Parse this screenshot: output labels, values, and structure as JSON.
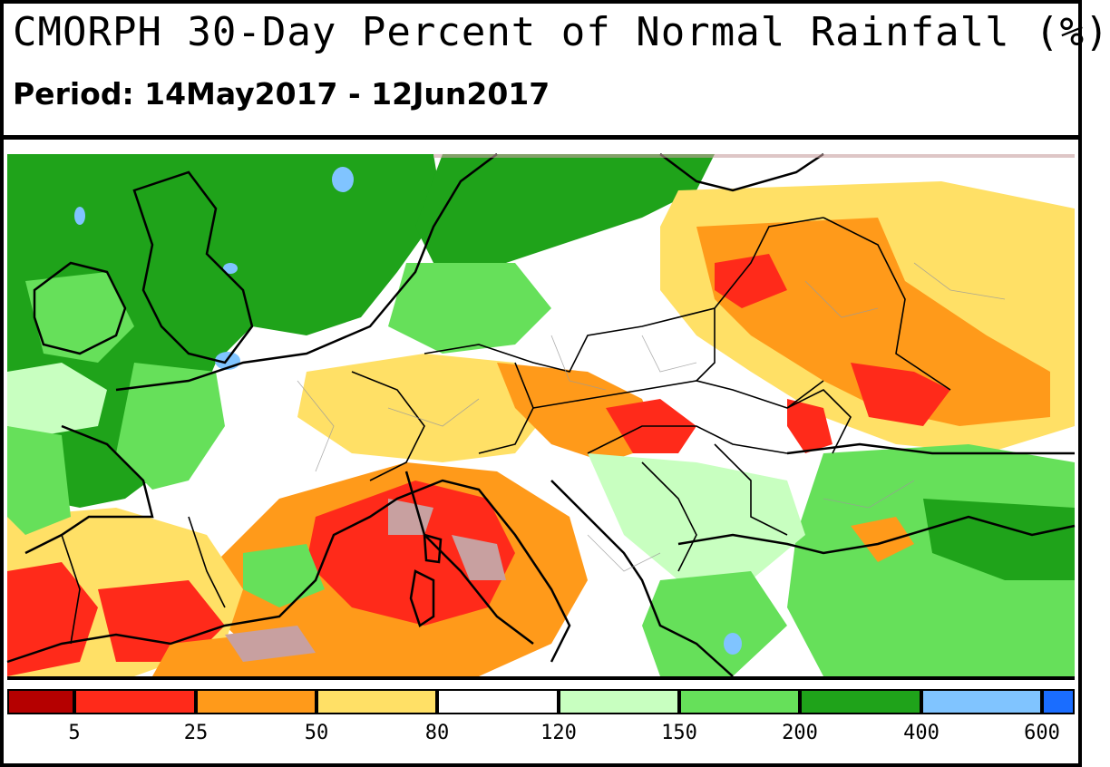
{
  "title": "CMORPH 30-Day Percent of Normal Rainfall (%)",
  "period": "Period: 14May2017 - 12Jun2017",
  "legend": {
    "colors": [
      "#b50000",
      "#ff2a1a",
      "#ff9a1a",
      "#ffe066",
      "#ffffff",
      "#c8ffc0",
      "#66e05a",
      "#1fa31a",
      "#80c4ff",
      "#1a6dff"
    ],
    "labels": [
      "5",
      "25",
      "50",
      "80",
      "120",
      "150",
      "200",
      "400",
      "600"
    ]
  },
  "palette": {
    "dry_extreme": "#c8a0a0",
    "very_dry": "#ff2a1a",
    "dry": "#ff9a1a",
    "below": "#ffe066",
    "normal": "#ffffff",
    "wet_light": "#c8ffc0",
    "wet": "#66e05a",
    "very_wet": "#1fa31a",
    "extreme_wet": "#80c4ff",
    "border": "#000000",
    "admin_border": "#9a9a9a"
  }
}
